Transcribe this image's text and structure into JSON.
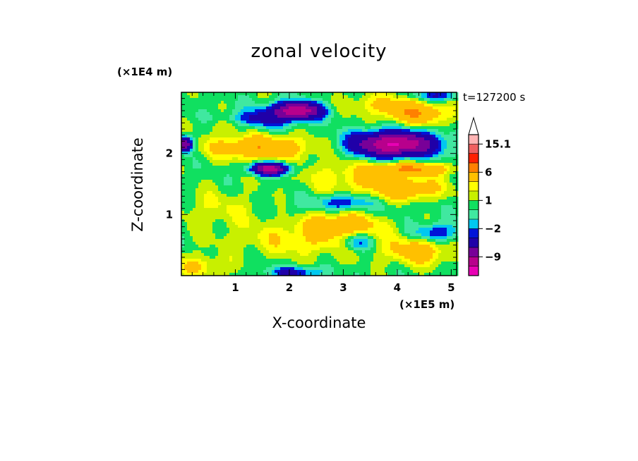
{
  "chart_data": {
    "type": "heatmap",
    "title": "zonal velocity",
    "xlabel": "X-coordinate",
    "ylabel": "Z-coordinate",
    "x_unit": "(×1E5 m)",
    "y_unit": "(×1E4 m)",
    "time_label": "t=127200 s",
    "xlim": [
      0,
      5.1
    ],
    "ylim": [
      0,
      3.0
    ],
    "x_ticks": [
      1,
      2,
      3,
      4,
      5
    ],
    "x_tick_labels": [
      "1",
      "2",
      "3",
      "4",
      "5"
    ],
    "y_ticks": [
      1,
      2
    ],
    "y_tick_labels": [
      "1",
      "2"
    ],
    "colorbar": {
      "levels": [
        -15,
        -12,
        -9,
        -6,
        -3,
        -2,
        -1,
        0,
        1,
        2,
        3,
        6,
        9,
        12,
        15.1
      ],
      "colors": [
        "#e800b4",
        "#b8008c",
        "#780098",
        "#2000a8",
        "#0014d8",
        "#00c8f0",
        "#40e8a0",
        "#10e060",
        "#c8f000",
        "#ffff00",
        "#ffc000",
        "#ff8000",
        "#ff2000",
        "#f06060",
        "#ffb4b4"
      ],
      "labels": [
        {
          "value": 15.1,
          "text": "15.1"
        },
        {
          "value": 6,
          "text": "6"
        },
        {
          "value": 1,
          "text": "1"
        },
        {
          "value": -2,
          "text": "−2"
        },
        {
          "value": -9,
          "text": "−9"
        }
      ]
    },
    "features": [
      {
        "x": 2.15,
        "z": 2.7,
        "rx": 0.45,
        "rz": 0.14,
        "v": -12
      },
      {
        "x": 1.45,
        "z": 2.55,
        "rx": 0.55,
        "rz": 0.16,
        "v": -4
      },
      {
        "x": 3.95,
        "z": 2.15,
        "rx": 0.75,
        "rz": 0.2,
        "v": -13
      },
      {
        "x": 0.05,
        "z": 2.15,
        "rx": 0.15,
        "rz": 0.12,
        "v": -10
      },
      {
        "x": 1.65,
        "z": 1.75,
        "rx": 0.35,
        "rz": 0.1,
        "v": -11
      },
      {
        "x": 1.45,
        "z": 2.1,
        "rx": 0.95,
        "rz": 0.2,
        "v": 5
      },
      {
        "x": 4.4,
        "z": 2.65,
        "rx": 0.55,
        "rz": 0.18,
        "v": 5
      },
      {
        "x": 3.7,
        "z": 2.8,
        "rx": 0.7,
        "rz": 0.18,
        "v": 2.5
      },
      {
        "x": 3.35,
        "z": 1.6,
        "rx": 1.2,
        "rz": 0.28,
        "v": 2.5
      },
      {
        "x": 4.2,
        "z": 1.4,
        "rx": 0.6,
        "rz": 0.16,
        "v": 4
      },
      {
        "x": 2.4,
        "z": 0.6,
        "rx": 1.4,
        "rz": 0.3,
        "v": 2.5
      },
      {
        "x": 3.0,
        "z": 0.85,
        "rx": 0.7,
        "rz": 0.18,
        "v": 4
      },
      {
        "x": 4.4,
        "z": 0.4,
        "rx": 0.55,
        "rz": 0.22,
        "v": 4
      },
      {
        "x": 0.7,
        "z": 1.1,
        "rx": 0.75,
        "rz": 0.3,
        "v": 1.5
      },
      {
        "x": 0.3,
        "z": 0.15,
        "rx": 0.55,
        "rz": 0.18,
        "v": 2.5
      },
      {
        "x": 3.25,
        "z": 0.55,
        "rx": 0.3,
        "rz": 0.15,
        "v": -4
      },
      {
        "x": 4.7,
        "z": 0.7,
        "rx": 0.4,
        "rz": 0.15,
        "v": -4
      },
      {
        "x": 3.0,
        "z": 1.2,
        "rx": 0.45,
        "rz": 0.12,
        "v": -4
      },
      {
        "x": 0.9,
        "z": 2.45,
        "rx": 0.5,
        "rz": 0.1,
        "v": 1.5
      },
      {
        "x": 2.1,
        "z": 0.05,
        "rx": 0.5,
        "rz": 0.1,
        "v": -4
      },
      {
        "x": 3.75,
        "z": 1.0,
        "rx": 0.8,
        "rz": 0.25,
        "v": -0.5
      },
      {
        "x": 2.05,
        "z": 1.15,
        "rx": 0.45,
        "rz": 0.35,
        "v": -0.5
      },
      {
        "x": 4.3,
        "z": 1.75,
        "rx": 0.7,
        "rz": 0.1,
        "v": 5
      },
      {
        "x": 4.75,
        "z": 2.95,
        "rx": 0.4,
        "rz": 0.1,
        "v": -4
      }
    ]
  }
}
